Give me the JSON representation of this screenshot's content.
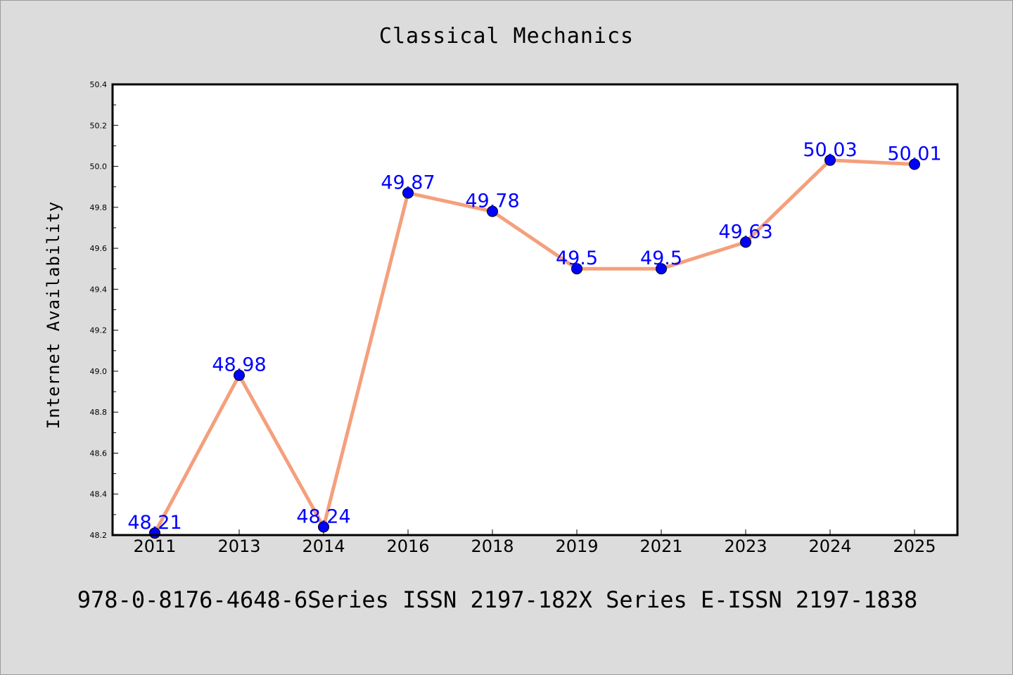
{
  "header": {
    "title": "Classical Mechanics"
  },
  "footer": {
    "note": "978-0-8176-4648-6Series ISSN 2197-182X Series E-ISSN 2197-1838"
  },
  "chart_data": {
    "type": "line",
    "title": "Classical Mechanics",
    "xlabel": "",
    "ylabel": "Internet Availability",
    "categories": [
      "2011",
      "2013",
      "2014",
      "2016",
      "2018",
      "2019",
      "2021",
      "2023",
      "2024",
      "2025"
    ],
    "series": [
      {
        "values": [
          48.21,
          48.98,
          48.24,
          49.87,
          49.78,
          49.5,
          49.5,
          49.63,
          50.03,
          50.01
        ]
      }
    ],
    "data_labels": [
      "48.21",
      "48.98",
      "48.24",
      "49.87",
      "49.78",
      "49.5",
      "49.5",
      "49.63",
      "50.03",
      "50.01"
    ],
    "ylim": [
      48.2,
      50.4
    ],
    "yticks": [
      "48.2",
      "48.4",
      "48.6",
      "48.8",
      "49.0",
      "49.2",
      "49.4",
      "49.6",
      "49.8",
      "50.0",
      "50.2",
      "50.4"
    ],
    "grid": false,
    "legend": "none",
    "colors": {
      "line": "#f4a07c",
      "marker": "#0000ff",
      "label": "#0000ff",
      "background": "#dcdcdc",
      "plot_background": "#ffffff"
    }
  }
}
